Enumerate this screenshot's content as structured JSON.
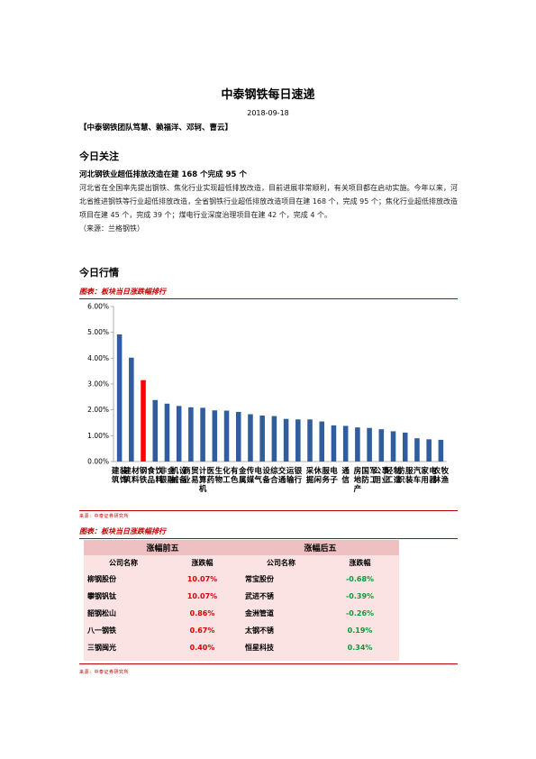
{
  "title": "中泰钢铁每日速递",
  "date": "2018-09-18",
  "team": "【中泰钢铁团队笃慧、赖福洋、邓轲、曹云】",
  "section_today_focus": "今日关注",
  "news": {
    "headline": "河北钢铁业超低排放改造在建 168 个完成 95 个",
    "paragraph": "河北省在全国率先提出钢铁、焦化行业实现超低排放改造，目前进展非常顺利，有关项目都在启动实施。今年以来，河北省推进钢铁等行业超低排放改造，全省钢铁行业超低排放改造项目在建 168 个，完成 95 个；焦化行业超低排放改造项目在建 45 个，完成 39 个；煤电行业深度治理项目在建 42 个，完成 4 个。",
    "source": "（来源：兰格钢铁）"
  },
  "section_market": "今日行情",
  "figure1": {
    "caption": "图表：板块当日涨跌幅排行",
    "source": "来源：中泰证券研究所"
  },
  "chart_data": {
    "type": "bar",
    "categories": [
      "建筑装饰",
      "建筑材料",
      "钢铁",
      "食品饮料",
      "非银金融",
      "机械设备",
      "商业贸易",
      "计算机",
      "医药生物",
      "化工",
      "有色金属",
      "传媒",
      "电气设备",
      "综合",
      "交通运输",
      "银行",
      "采掘",
      "休闲服务",
      "电子",
      "通信",
      "房地产",
      "国防军工",
      "公用事业",
      "轻工制造",
      "纺织服装",
      "汽车",
      "家用电器",
      "农林牧渔"
    ],
    "values": [
      4.92,
      4.02,
      3.15,
      2.38,
      2.24,
      2.15,
      2.1,
      2.08,
      1.98,
      1.97,
      1.92,
      1.83,
      1.78,
      1.76,
      1.65,
      1.63,
      1.63,
      1.55,
      1.4,
      1.38,
      1.32,
      1.3,
      1.25,
      1.17,
      1.12,
      0.9,
      0.86,
      0.84
    ],
    "highlight_index": 2,
    "highlight_color": "#ff0000",
    "bar_color": "#2f5d9e",
    "ylim": [
      0,
      6
    ],
    "yticks": [
      "0.00%",
      "1.00%",
      "2.00%",
      "3.00%",
      "4.00%",
      "5.00%",
      "6.00%"
    ],
    "xlabel": "",
    "ylabel": "",
    "legend": "none",
    "grid": false
  },
  "figure2": {
    "caption": "图表：板块当日涨跌幅排行",
    "source": "来源：中泰证券研究所",
    "top_header": "涨幅前五",
    "bottom_header": "涨幅后五",
    "col_name": "公司名称",
    "col_change": "涨跌幅",
    "top5": [
      {
        "name": "柳钢股份",
        "change": "10.07%"
      },
      {
        "name": "攀钢钒钛",
        "change": "10.07%"
      },
      {
        "name": "韶钢松山",
        "change": "0.86%"
      },
      {
        "name": "八一钢铁",
        "change": "0.67%"
      },
      {
        "name": "三钢闽光",
        "change": "0.40%"
      }
    ],
    "bottom5": [
      {
        "name": "常宝股份",
        "change": "-0.68%"
      },
      {
        "name": "武进不锈",
        "change": "-0.39%"
      },
      {
        "name": "金洲管道",
        "change": "-0.26%"
      },
      {
        "name": "太钢不锈",
        "change": "0.19%"
      },
      {
        "name": "恒星科技",
        "change": "0.34%"
      }
    ]
  }
}
